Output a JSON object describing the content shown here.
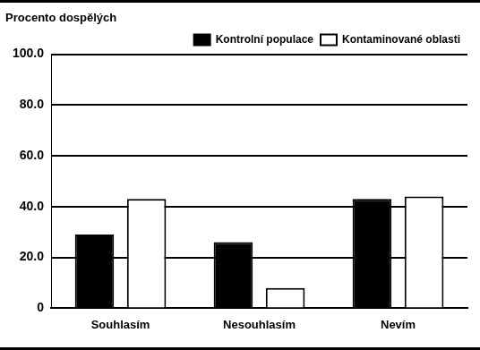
{
  "chart_data": {
    "type": "bar",
    "y_label": "Procento dospělých",
    "categories": [
      "Souhlasím",
      "Nesouhlasím",
      "Nevím"
    ],
    "series": [
      {
        "name": "Kontrolní populace",
        "color": "#000000",
        "values": [
          29,
          26,
          43
        ]
      },
      {
        "name": "Kontaminované oblasti",
        "color": "#ffffff",
        "values": [
          43,
          8,
          44
        ]
      }
    ],
    "ylim": [
      0,
      100
    ],
    "yticks": [
      0,
      {
        "value": 20,
        "label": "20.0"
      },
      {
        "value": 40,
        "label": "40.0"
      },
      {
        "value": 60,
        "label": "60.0"
      },
      {
        "value": 80,
        "label": "80.0"
      },
      {
        "value": 100,
        "label": "100.0"
      }
    ],
    "grid": true,
    "legend": "upper right"
  }
}
